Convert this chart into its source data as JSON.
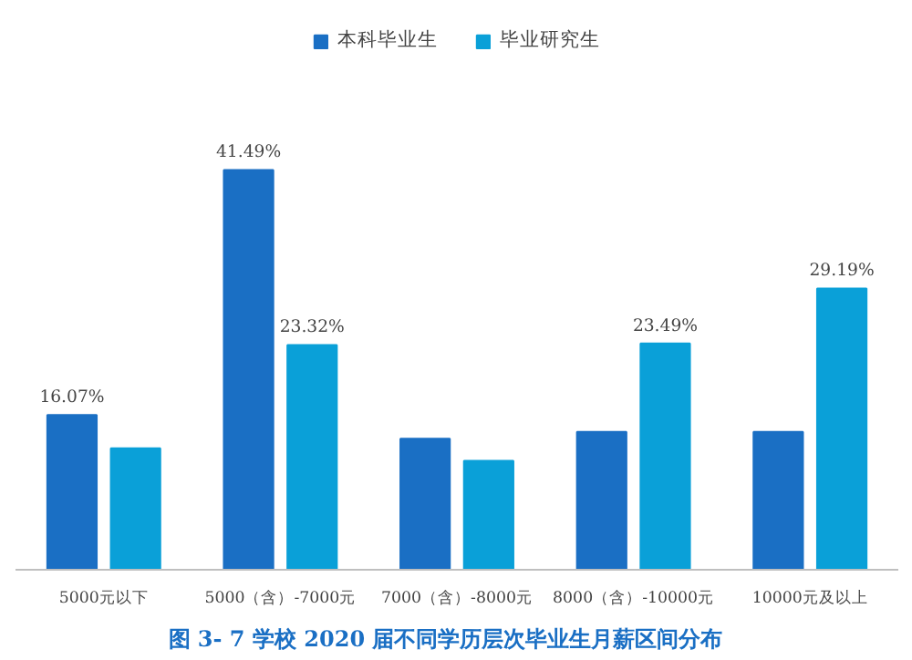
{
  "chart_data": {
    "type": "bar",
    "title": "图 3- 7    学校 2020 届不同学历层次毕业生月薪区间分布",
    "categories": [
      "5000元以下",
      "5000（含）-7000元",
      "7000（含）-8000元",
      "8000（含）-10000元",
      "10000元及以上"
    ],
    "series": [
      {
        "name": "本科毕业生",
        "color": "#1a6fc4",
        "values": [
          16.07,
          41.49,
          13.6,
          14.3,
          14.3
        ],
        "value_labels": [
          "16.07%",
          "41.49%",
          null,
          null,
          null
        ]
      },
      {
        "name": "毕业研究生",
        "color": "#0aa0d8",
        "values": [
          12.6,
          23.32,
          11.3,
          23.49,
          29.19
        ],
        "value_labels": [
          null,
          "23.32%",
          null,
          "23.49%",
          "29.19%"
        ]
      }
    ],
    "legend": "top"
  }
}
